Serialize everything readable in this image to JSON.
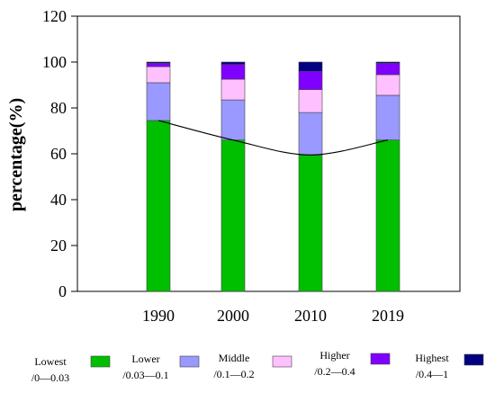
{
  "chart_data": {
    "type": "bar",
    "stacked": true,
    "ylabel": "percentage(%)",
    "xlabel": "",
    "ylim": [
      0,
      120
    ],
    "yticks": [
      0,
      20,
      40,
      60,
      80,
      100,
      120
    ],
    "categories": [
      "1990",
      "2000",
      "2010",
      "2019"
    ],
    "series": [
      {
        "name": "Lowest",
        "range": "/0—0.03",
        "color": "#00bf00",
        "values": [
          74.5,
          66,
          59.5,
          66
        ]
      },
      {
        "name": "Lower",
        "range": "/0.03—0.1",
        "color": "#9999ff",
        "values": [
          16.5,
          17.5,
          18.5,
          19.5
        ]
      },
      {
        "name": "Middle",
        "range": "/0.1—0.2",
        "color": "#ffc0ff",
        "values": [
          7,
          9,
          10,
          9
        ]
      },
      {
        "name": "Higher",
        "range": "/0.2—0.4",
        "color": "#8000ff",
        "values": [
          1.5,
          6.5,
          8,
          5
        ]
      },
      {
        "name": "Highest",
        "range": "/0.4—1",
        "color": "#000080",
        "values": [
          0.5,
          1,
          4,
          0.5
        ]
      }
    ],
    "trend_line": {
      "series": "Lowest",
      "values": [
        74.5,
        66,
        59.5,
        66
      ]
    },
    "grid": false,
    "legend_position": "bottom"
  }
}
